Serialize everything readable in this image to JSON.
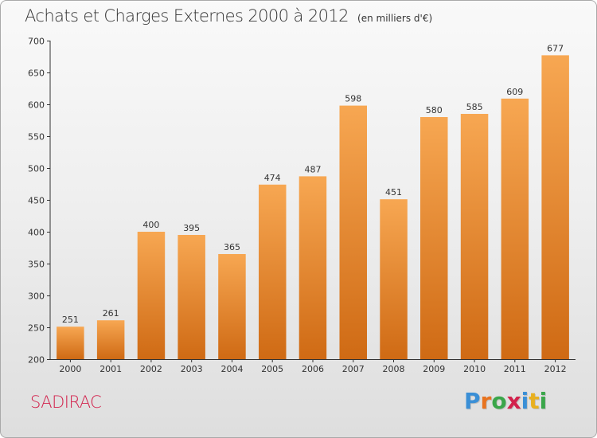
{
  "chart_data": {
    "type": "bar",
    "title": "Achats et Charges Externes 2000 à 2012",
    "subtitle": "(en milliers d'€)",
    "categories": [
      "2000",
      "2001",
      "2002",
      "2003",
      "2004",
      "2005",
      "2006",
      "2007",
      "2008",
      "2009",
      "2010",
      "2011",
      "2012"
    ],
    "values": [
      251,
      261,
      400,
      395,
      365,
      474,
      487,
      598,
      451,
      580,
      585,
      609,
      677
    ],
    "ylim": [
      200,
      700
    ],
    "yticks": [
      200,
      250,
      300,
      350,
      400,
      450,
      500,
      550,
      600,
      650,
      700
    ],
    "xlabel": "",
    "ylabel": "",
    "grid": false,
    "data_labels": true,
    "bar_color_top": "#f7a752",
    "bar_color_bottom": "#cf6a14"
  },
  "footer": {
    "commune": "SADIRAC",
    "commune_color": "#d2214c"
  },
  "logo": {
    "text": "Proxiti",
    "letter_colors": [
      "#3a8fd6",
      "#e8731f",
      "#3aa64a",
      "#d2214c",
      "#3a8fd6",
      "#e8b020",
      "#3aa64a"
    ]
  }
}
